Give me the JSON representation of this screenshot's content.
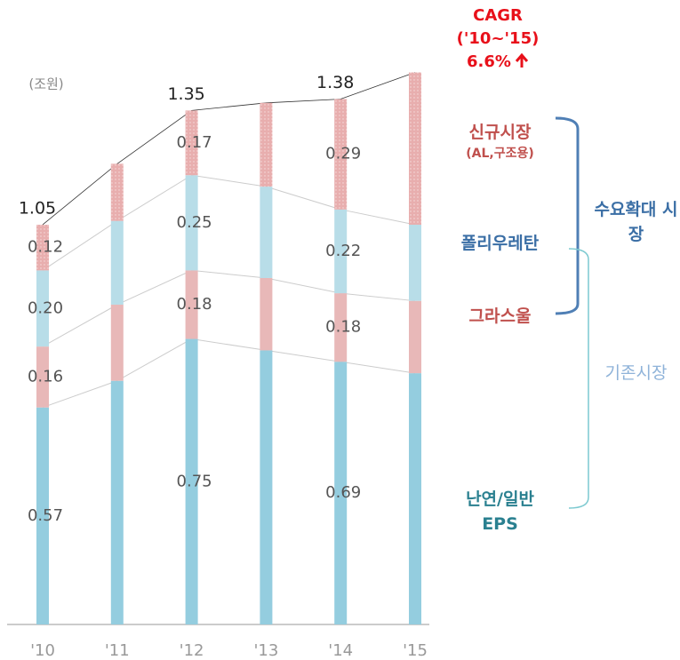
{
  "chart_data": {
    "type": "stacked_bar",
    "unit": "(조원)",
    "categories": [
      "'10",
      "'11",
      "'12",
      "'13",
      "'14",
      "'15"
    ],
    "series": [
      {
        "name": "난연/일반 EPS",
        "color": "#94cddf",
        "label_color": "#2a8090",
        "values": [
          0.57,
          0.64,
          0.75,
          0.72,
          0.69,
          0.66
        ],
        "value_labels": [
          "0.57",
          null,
          "0.75",
          null,
          "0.69",
          null
        ]
      },
      {
        "name": "그라스울",
        "color": "#e8b8b8",
        "label_color": "#c0504d",
        "values": [
          0.16,
          0.2,
          0.18,
          0.19,
          0.18,
          0.19
        ],
        "value_labels": [
          "0.16",
          null,
          "0.18",
          null,
          "0.18",
          null
        ]
      },
      {
        "name": "폴리우레탄",
        "color": "#b8dde8",
        "label_color": "#3a6ea5",
        "values": [
          0.2,
          0.22,
          0.25,
          0.24,
          0.22,
          0.2
        ],
        "value_labels": [
          "0.20",
          null,
          "0.25",
          null,
          "0.22",
          null
        ]
      },
      {
        "name": "신규시장",
        "note": "(AL,구조용)",
        "color": "#e8aeae",
        "label_color": "#c0504d",
        "values": [
          0.12,
          0.15,
          0.17,
          0.22,
          0.29,
          0.4
        ],
        "value_labels": [
          "0.12",
          null,
          "0.17",
          null,
          "0.29",
          null
        ]
      }
    ],
    "totals": [
      1.05,
      null,
      1.35,
      null,
      1.38,
      null
    ],
    "ylim": [
      0,
      1.62
    ],
    "cagr": {
      "title": "CAGR",
      "period": "('10~'15)",
      "value": "6.6%"
    },
    "groups": [
      {
        "name": "수요확대 시장",
        "color": "#3a6ea5"
      },
      {
        "name": "기존시장",
        "color": "#8fb3d9"
      }
    ]
  }
}
